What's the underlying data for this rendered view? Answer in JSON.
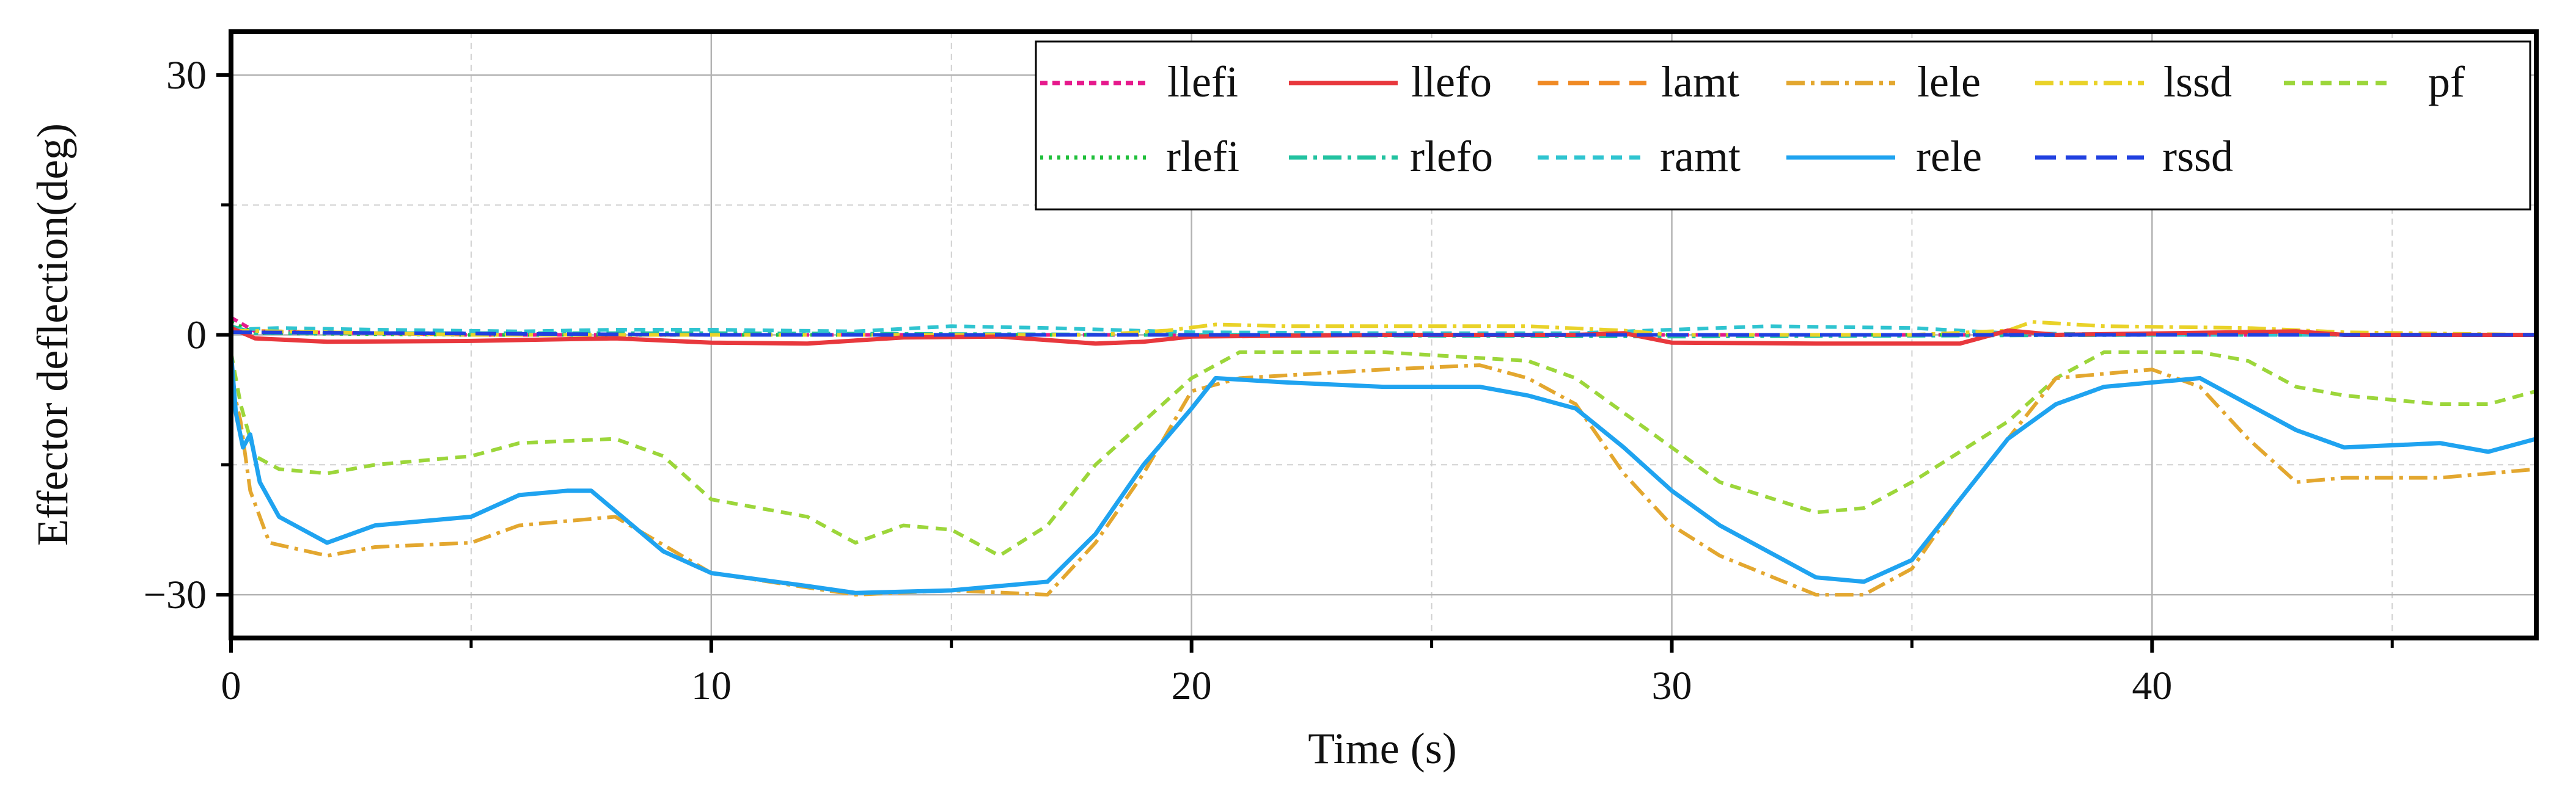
{
  "chart_data": {
    "type": "line",
    "title": "",
    "xlabel": "Time (s)",
    "ylabel": "Effector deflection(deg)",
    "xlim": [
      0,
      48
    ],
    "ylim": [
      -35,
      35
    ],
    "xticks": [
      0,
      10,
      20,
      30,
      40
    ],
    "xminor": [
      5,
      15,
      25,
      35,
      45
    ],
    "yticks": [
      -30,
      0,
      30
    ],
    "yminor": [
      -15,
      15
    ],
    "xtick_labels": [
      "0",
      "10",
      "20",
      "30",
      "40"
    ],
    "ytick_labels": [
      "−30",
      "0",
      "30"
    ],
    "grid": true,
    "legend_position": "top-right",
    "series": [
      {
        "name": "llefi",
        "color": "#e6198c",
        "dash": "dotted-dash",
        "points": [
          [
            0,
            2
          ],
          [
            0.5,
            0.4
          ],
          [
            5,
            0
          ],
          [
            10,
            0
          ],
          [
            20,
            0
          ],
          [
            30,
            0
          ],
          [
            40,
            0
          ],
          [
            48,
            0
          ]
        ]
      },
      {
        "name": "llefo",
        "color": "#e8383d",
        "dash": "solid",
        "points": [
          [
            0,
            0.8
          ],
          [
            0.5,
            -0.4
          ],
          [
            2,
            -0.8
          ],
          [
            5,
            -0.7
          ],
          [
            8,
            -0.4
          ],
          [
            10,
            -0.9
          ],
          [
            12,
            -1
          ],
          [
            14,
            -0.3
          ],
          [
            16,
            -0.2
          ],
          [
            18,
            -1
          ],
          [
            19,
            -0.8
          ],
          [
            20,
            -0.2
          ],
          [
            24,
            0
          ],
          [
            28,
            0
          ],
          [
            29,
            0.2
          ],
          [
            30,
            -0.9
          ],
          [
            33,
            -1
          ],
          [
            36,
            -1
          ],
          [
            37,
            0.5
          ],
          [
            38,
            0
          ],
          [
            43,
            0.4
          ],
          [
            44,
            0
          ],
          [
            48,
            0
          ]
        ]
      },
      {
        "name": "lamt",
        "color": "#f08a24",
        "dash": "long-dash",
        "points": [
          [
            0,
            0.5
          ],
          [
            5,
            0
          ],
          [
            10,
            0
          ],
          [
            20,
            0
          ],
          [
            30,
            0
          ],
          [
            40,
            0
          ],
          [
            48,
            0
          ]
        ]
      },
      {
        "name": "lele",
        "color": "#e3a72f",
        "dash": "dash-dot",
        "points": [
          [
            0,
            -5
          ],
          [
            0.2,
            -10
          ],
          [
            0.4,
            -18
          ],
          [
            0.8,
            -24
          ],
          [
            2,
            -25.5
          ],
          [
            3,
            -24.5
          ],
          [
            5,
            -24
          ],
          [
            6,
            -22
          ],
          [
            8,
            -21
          ],
          [
            10,
            -27.5
          ],
          [
            13,
            -30
          ],
          [
            15,
            -29.5
          ],
          [
            17,
            -30
          ],
          [
            18,
            -24
          ],
          [
            19,
            -16
          ],
          [
            20,
            -6.5
          ],
          [
            21,
            -5
          ],
          [
            24,
            -4
          ],
          [
            26,
            -3.5
          ],
          [
            27,
            -5
          ],
          [
            28,
            -8
          ],
          [
            29,
            -16
          ],
          [
            30,
            -22
          ],
          [
            31,
            -25.5
          ],
          [
            33,
            -30
          ],
          [
            34,
            -30
          ],
          [
            35,
            -27
          ],
          [
            36,
            -19
          ],
          [
            37,
            -12
          ],
          [
            38,
            -5
          ],
          [
            40,
            -4
          ],
          [
            41,
            -6
          ],
          [
            42,
            -12
          ],
          [
            43,
            -17
          ],
          [
            44,
            -16.5
          ],
          [
            46,
            -16.5
          ],
          [
            48,
            -15.5
          ]
        ]
      },
      {
        "name": "lssd",
        "color": "#e9d228",
        "dash": "dash-dot",
        "points": [
          [
            0,
            0.5
          ],
          [
            5,
            0
          ],
          [
            10,
            0
          ],
          [
            18,
            0
          ],
          [
            19.5,
            0.5
          ],
          [
            20.5,
            1.2
          ],
          [
            22,
            1
          ],
          [
            25,
            1
          ],
          [
            27,
            1
          ],
          [
            29,
            0.5
          ],
          [
            30,
            0
          ],
          [
            35,
            0
          ],
          [
            37,
            0.5
          ],
          [
            37.5,
            1.5
          ],
          [
            39,
            1
          ],
          [
            42,
            0.8
          ],
          [
            44,
            0.3
          ],
          [
            48,
            0
          ]
        ]
      },
      {
        "name": "pf",
        "color": "#9cd63a",
        "dash": "dashed",
        "points": [
          [
            0,
            -2
          ],
          [
            0.2,
            -8
          ],
          [
            0.5,
            -14
          ],
          [
            1,
            -15.5
          ],
          [
            2,
            -16
          ],
          [
            3,
            -15
          ],
          [
            5,
            -14
          ],
          [
            6,
            -12.5
          ],
          [
            8,
            -12
          ],
          [
            9,
            -14
          ],
          [
            10,
            -19
          ],
          [
            12,
            -21
          ],
          [
            13,
            -24
          ],
          [
            14,
            -22
          ],
          [
            15,
            -22.5
          ],
          [
            16,
            -25.5
          ],
          [
            17,
            -22
          ],
          [
            18,
            -15
          ],
          [
            19,
            -10
          ],
          [
            20,
            -5
          ],
          [
            21,
            -2
          ],
          [
            24,
            -2
          ],
          [
            27,
            -3
          ],
          [
            28,
            -5
          ],
          [
            29,
            -9
          ],
          [
            30,
            -13
          ],
          [
            31,
            -17
          ],
          [
            33,
            -20.5
          ],
          [
            34,
            -20
          ],
          [
            35,
            -17
          ],
          [
            37,
            -10
          ],
          [
            38,
            -5
          ],
          [
            39,
            -2
          ],
          [
            41,
            -2
          ],
          [
            42,
            -3
          ],
          [
            43,
            -6
          ],
          [
            44,
            -7
          ],
          [
            46,
            -8
          ],
          [
            47,
            -8
          ],
          [
            48,
            -6.5
          ]
        ]
      },
      {
        "name": "rlefi",
        "color": "#1fbf3a",
        "dash": "dotted",
        "points": [
          [
            0,
            1.5
          ],
          [
            0.5,
            0.2
          ],
          [
            5,
            0
          ],
          [
            10,
            0
          ],
          [
            20,
            0
          ],
          [
            30,
            0
          ],
          [
            40,
            0
          ],
          [
            48,
            0
          ]
        ]
      },
      {
        "name": "rlefo",
        "color": "#22c2a0",
        "dash": "dash-dot",
        "points": [
          [
            0,
            1
          ],
          [
            0.5,
            0.2
          ],
          [
            10,
            0.2
          ],
          [
            20,
            0
          ],
          [
            30,
            -0.2
          ],
          [
            40,
            0
          ],
          [
            48,
            0
          ]
        ]
      },
      {
        "name": "ramt",
        "color": "#2fc4d0",
        "dash": "dashed",
        "points": [
          [
            0,
            0.6
          ],
          [
            1,
            0.8
          ],
          [
            3,
            0.6
          ],
          [
            6,
            0.4
          ],
          [
            8,
            0.6
          ],
          [
            10,
            0.6
          ],
          [
            13,
            0.4
          ],
          [
            15,
            1
          ],
          [
            17,
            0.8
          ],
          [
            20,
            0.3
          ],
          [
            24,
            0.2
          ],
          [
            28,
            0.2
          ],
          [
            30,
            0.6
          ],
          [
            32,
            1
          ],
          [
            35,
            0.8
          ],
          [
            37,
            0.2
          ],
          [
            40,
            0
          ],
          [
            48,
            0
          ]
        ]
      },
      {
        "name": "rele",
        "color": "#1fa3f0",
        "dash": "solid",
        "points": [
          [
            0,
            -2
          ],
          [
            0.1,
            -9
          ],
          [
            0.25,
            -13
          ],
          [
            0.4,
            -11.5
          ],
          [
            0.6,
            -17
          ],
          [
            1,
            -21
          ],
          [
            2,
            -24
          ],
          [
            3,
            -22
          ],
          [
            5,
            -21
          ],
          [
            6,
            -18.5
          ],
          [
            7,
            -18
          ],
          [
            7.5,
            -18
          ],
          [
            9,
            -25
          ],
          [
            10,
            -27.5
          ],
          [
            12,
            -29
          ],
          [
            13,
            -29.8
          ],
          [
            15,
            -29.5
          ],
          [
            17,
            -28.5
          ],
          [
            18,
            -23
          ],
          [
            19,
            -15
          ],
          [
            20,
            -8.5
          ],
          [
            20.5,
            -5
          ],
          [
            22,
            -5.5
          ],
          [
            24,
            -6
          ],
          [
            26,
            -6
          ],
          [
            27,
            -7
          ],
          [
            28,
            -8.5
          ],
          [
            29,
            -13
          ],
          [
            30,
            -18
          ],
          [
            31,
            -22
          ],
          [
            33,
            -28
          ],
          [
            34,
            -28.5
          ],
          [
            35,
            -26
          ],
          [
            36,
            -19
          ],
          [
            37,
            -12
          ],
          [
            38,
            -8
          ],
          [
            39,
            -6
          ],
          [
            41,
            -5
          ],
          [
            42,
            -8
          ],
          [
            43,
            -11
          ],
          [
            44,
            -13
          ],
          [
            46,
            -12.5
          ],
          [
            47,
            -13.5
          ],
          [
            48,
            -12
          ]
        ]
      },
      {
        "name": "rssd",
        "color": "#2040e0",
        "dash": "long-dash",
        "points": [
          [
            0,
            0.3
          ],
          [
            10,
            0
          ],
          [
            20,
            0
          ],
          [
            30,
            0
          ],
          [
            40,
            0
          ],
          [
            48,
            0
          ]
        ]
      }
    ]
  }
}
